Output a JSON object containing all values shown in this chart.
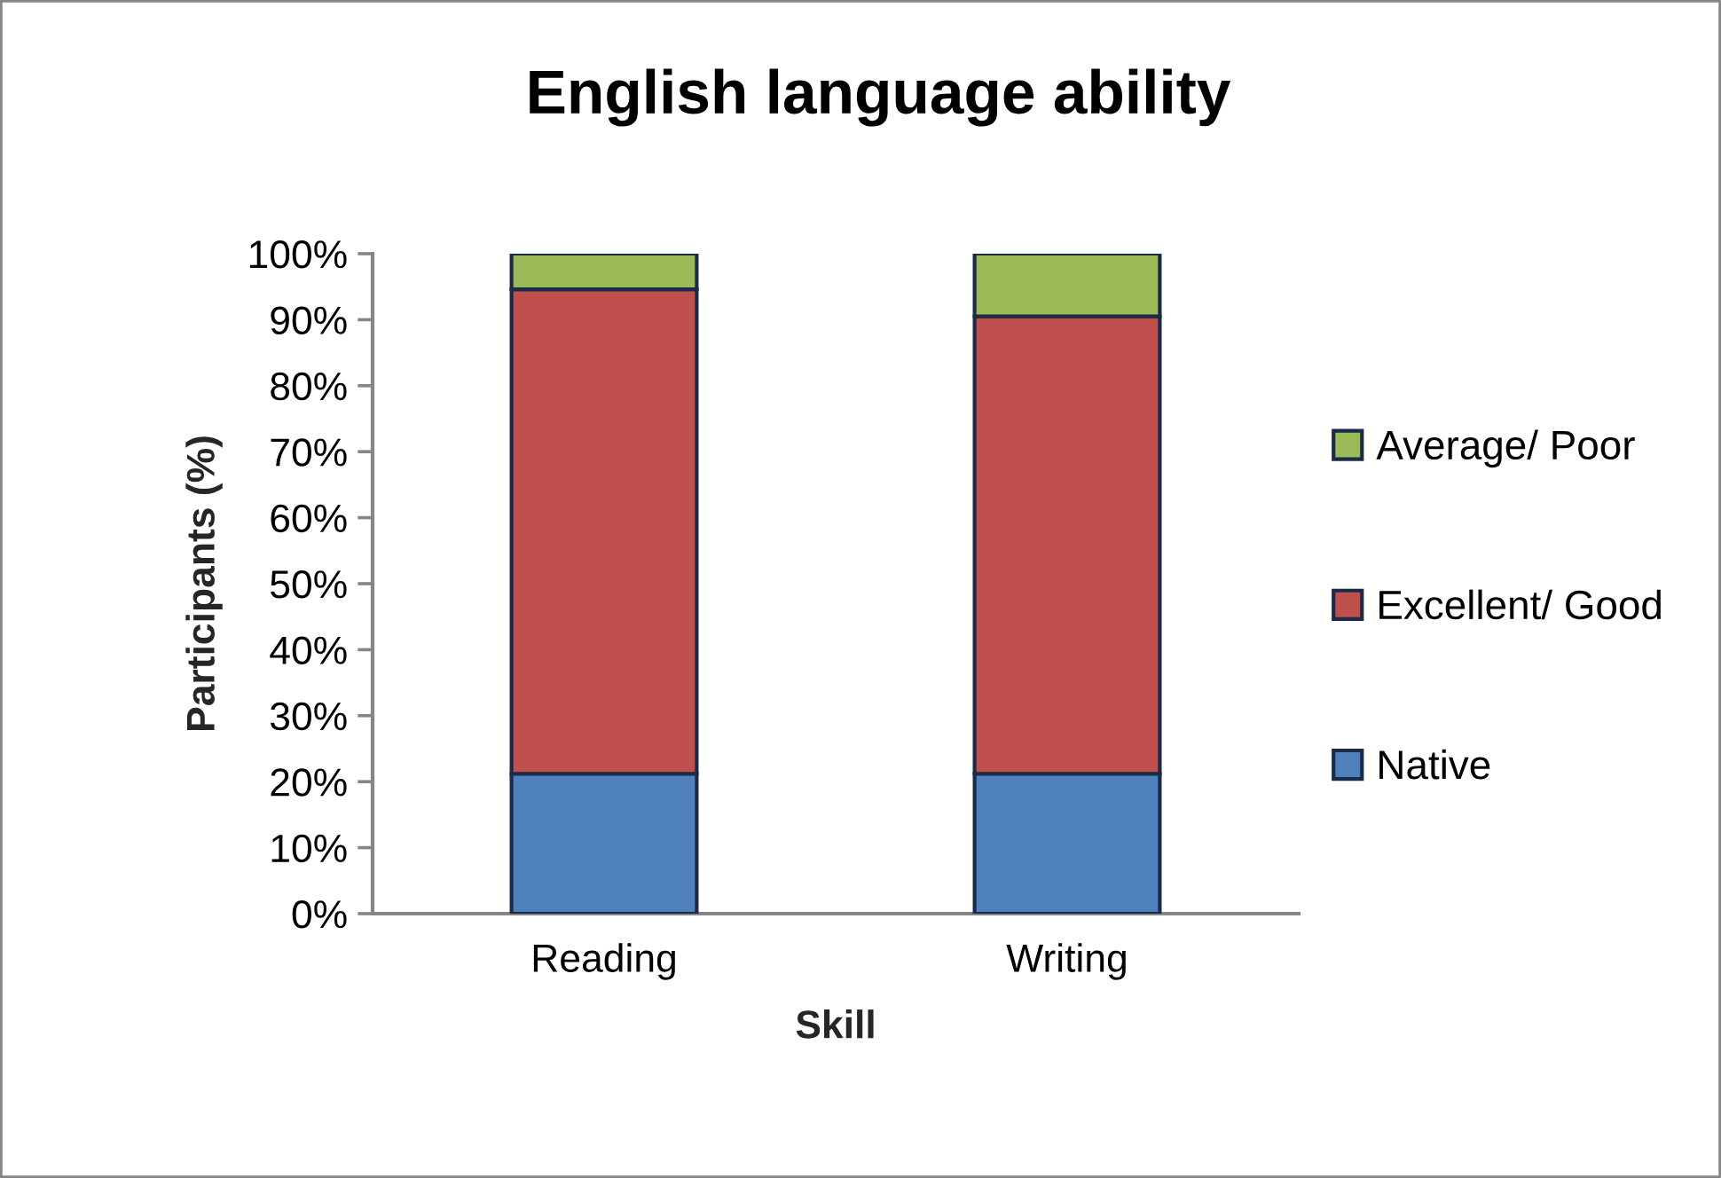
{
  "chart_data": {
    "type": "bar",
    "title": "English language ability",
    "xlabel": "Skill",
    "ylabel": "Participants (%)",
    "categories": [
      "Reading",
      "Writing"
    ],
    "series": [
      {
        "name": "Native",
        "color": "#4f81bd",
        "values": [
          21.2,
          21.2
        ]
      },
      {
        "name": "Excellent/ Good",
        "color": "#c0504d",
        "values": [
          73.4,
          69.3
        ]
      },
      {
        "name": "Average/ Poor",
        "color": "#9bbb59",
        "values": [
          5.4,
          9.5
        ]
      }
    ],
    "stacked": true,
    "ylim": [
      0,
      100
    ],
    "yticks": [
      {
        "value": 0,
        "label": "0%"
      },
      {
        "value": 10,
        "label": "10%"
      },
      {
        "value": 20,
        "label": "20%"
      },
      {
        "value": 30,
        "label": "30%"
      },
      {
        "value": 40,
        "label": "40%"
      },
      {
        "value": 50,
        "label": "50%"
      },
      {
        "value": 60,
        "label": "60%"
      },
      {
        "value": 70,
        "label": "70%"
      },
      {
        "value": 80,
        "label": "80%"
      },
      {
        "value": 90,
        "label": "90%"
      },
      {
        "value": 100,
        "label": "100%"
      }
    ],
    "grid": false,
    "legend": "right"
  }
}
